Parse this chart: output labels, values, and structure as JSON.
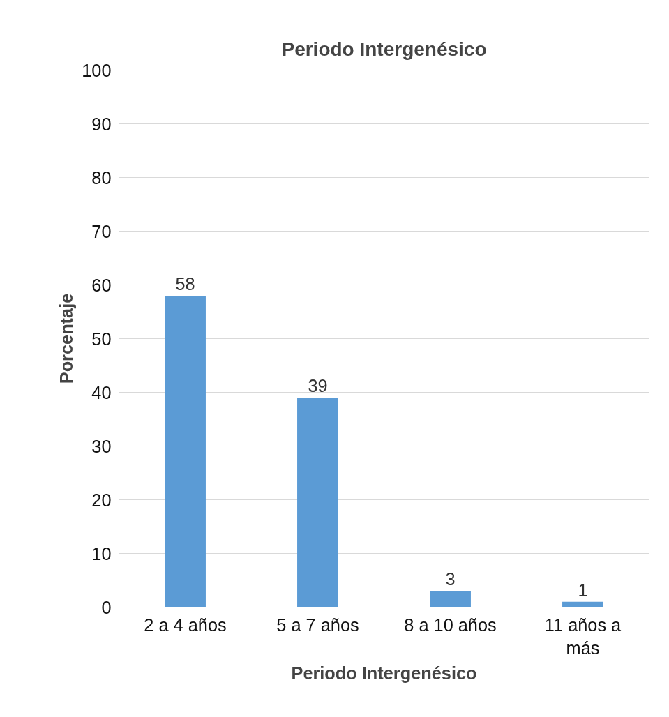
{
  "chart_data": {
    "type": "bar",
    "title": "Periodo Intergenésico",
    "xlabel": "Periodo Intergenésico",
    "ylabel": "Porcentaje",
    "categories": [
      "2 a 4 años",
      "5 a 7 años",
      "8 a 10 años",
      "11 años a más"
    ],
    "values": [
      58,
      39,
      3,
      1
    ],
    "color": "#5b9bd5",
    "ylim": [
      0,
      100
    ],
    "yticks": [
      0,
      10,
      20,
      30,
      40,
      50,
      60,
      70,
      80,
      90,
      100
    ],
    "grid": "y",
    "data_labels": true
  }
}
